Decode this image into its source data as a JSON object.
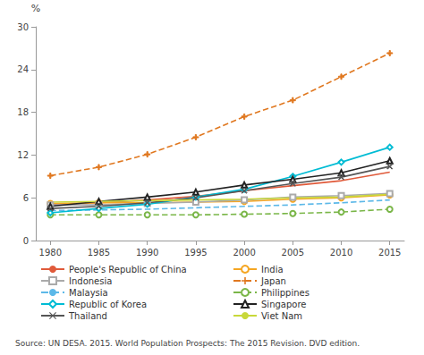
{
  "chart_data": {
    "type": "line",
    "ylabel": "%",
    "x": [
      1980,
      1985,
      1990,
      1995,
      2000,
      2005,
      2010,
      2015
    ],
    "series": [
      {
        "name": "People's Republic of China",
        "values": [
          5.0,
          5.3,
          5.7,
          6.2,
          7.0,
          7.7,
          8.4,
          9.6
        ],
        "color": "#e05a3a",
        "line_style": "solid",
        "marker": "none"
      },
      {
        "name": "India",
        "values": [
          5.2,
          5.3,
          5.3,
          5.4,
          5.5,
          5.8,
          6.0,
          6.4
        ],
        "color": "#f5a623",
        "line_style": "solid",
        "marker": "circle"
      },
      {
        "name": "Indonesia",
        "values": [
          5.0,
          5.0,
          5.2,
          5.4,
          5.7,
          6.1,
          6.3,
          6.6
        ],
        "color": "#aaaaaa",
        "line_style": "solid",
        "marker": "square"
      },
      {
        "name": "Japan",
        "values": [
          9.1,
          10.3,
          12.1,
          14.5,
          17.4,
          19.7,
          23.0,
          26.3
        ],
        "color": "#e07820",
        "line_style": "dashed",
        "marker": "plus"
      },
      {
        "name": "Malaysia",
        "values": [
          4.2,
          4.3,
          4.4,
          4.6,
          4.8,
          5.0,
          5.3,
          5.7
        ],
        "color": "#5cb8e8",
        "line_style": "dashed",
        "marker": "none"
      },
      {
        "name": "Philippines",
        "values": [
          3.6,
          3.6,
          3.6,
          3.6,
          3.7,
          3.8,
          4.0,
          4.4
        ],
        "color": "#7ab648",
        "line_style": "dashed",
        "marker": "circle"
      },
      {
        "name": "Republic of Korea",
        "values": [
          3.9,
          4.5,
          5.1,
          6.1,
          7.2,
          9.0,
          11.0,
          13.1
        ],
        "color": "#00bcd4",
        "line_style": "solid",
        "marker": "diamond"
      },
      {
        "name": "Singapore",
        "values": [
          4.8,
          5.5,
          6.1,
          6.8,
          7.8,
          8.6,
          9.5,
          11.2
        ],
        "color": "#222222",
        "line_style": "solid",
        "marker": "triangle"
      },
      {
        "name": "Thailand",
        "values": [
          4.5,
          4.8,
          5.3,
          6.0,
          7.0,
          8.0,
          8.9,
          10.4
        ],
        "color": "#555555",
        "line_style": "solid",
        "marker": "x"
      },
      {
        "name": "Viet Nam",
        "values": [
          5.4,
          5.5,
          5.6,
          5.7,
          5.8,
          6.0,
          6.1,
          6.5
        ],
        "color": "#c8d83a",
        "line_style": "solid",
        "marker": "none"
      }
    ],
    "xlim": [
      1978.5,
      2016.5
    ],
    "xticks": [
      1980,
      1985,
      1990,
      1995,
      2000,
      2005,
      2010,
      2015
    ],
    "ylim": [
      0,
      30
    ],
    "yticks": [
      0,
      6,
      12,
      18,
      24,
      30
    ],
    "grid": false,
    "legend": "bottom",
    "annotation": "Source: UN DESA. 2015. World Population Prospects: The 2015 Revision. DVD edition."
  }
}
